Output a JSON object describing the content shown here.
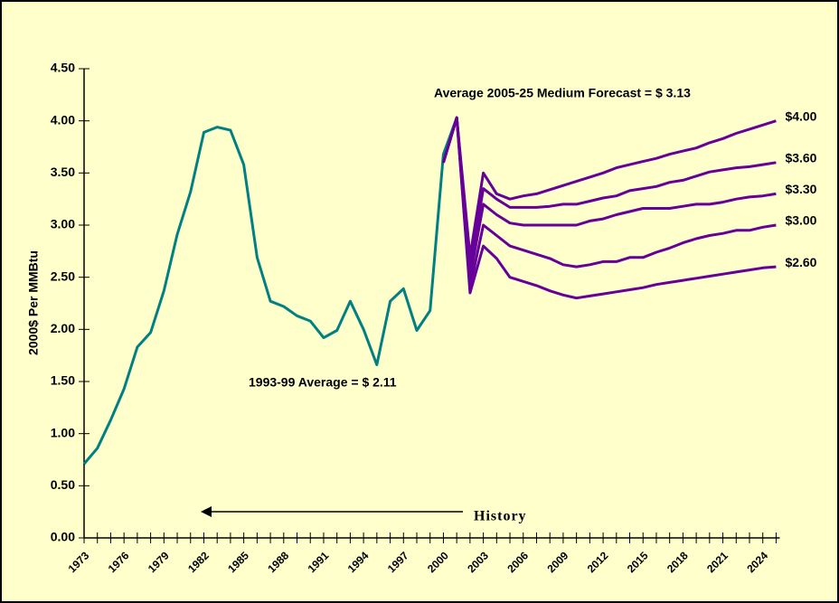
{
  "chart_data": {
    "type": "line",
    "y_label": "2000$ Per MMBtu",
    "annotations": [
      "Average 2005-25 Medium Forecast = $ 3.13",
      "1993-99 Average =  $ 2.11",
      "History"
    ],
    "categories": [
      "1973",
      null,
      null,
      "1976",
      null,
      null,
      "1979",
      null,
      null,
      "1982",
      null,
      null,
      "1985",
      null,
      null,
      "1988",
      null,
      null,
      "1991",
      null,
      null,
      "1994",
      null,
      null,
      "1997",
      null,
      null,
      "2000",
      null,
      null,
      "2003",
      null,
      null,
      "2006",
      null,
      null,
      "2009",
      null,
      null,
      "2012",
      null,
      null,
      "2015",
      null,
      null,
      "2018",
      null,
      null,
      "2021",
      null,
      null,
      "2024",
      null
    ],
    "ylim": [
      0,
      4.5
    ],
    "yticks": [
      {
        "value": 0,
        "label": "0.00"
      },
      {
        "value": 0.5,
        "label": "0.50"
      },
      {
        "value": 1,
        "label": "1.00"
      },
      {
        "value": 1.5,
        "label": "1.50"
      },
      {
        "value": 2,
        "label": "2.00"
      },
      {
        "value": 2.5,
        "label": "2.50"
      },
      {
        "value": 3,
        "label": "3.00"
      },
      {
        "value": 3.5,
        "label": "3.50"
      },
      {
        "value": 4,
        "label": "4.00"
      },
      {
        "value": 4.5,
        "label": "4.50"
      }
    ],
    "series": [
      {
        "color": "#008080",
        "values": [
          0.71,
          0.86,
          1.13,
          1.43,
          1.83,
          1.97,
          2.37,
          2.91,
          3.32,
          3.89,
          3.94,
          3.91,
          3.58,
          2.69,
          2.27,
          2.22,
          2.13,
          2.08,
          1.92,
          1.99,
          2.27,
          2.0,
          1.66,
          2.27,
          2.39,
          1.99,
          2.18,
          3.68,
          4.03,
          null,
          null,
          null,
          null,
          null,
          null,
          null,
          null,
          null,
          null,
          null,
          null,
          null,
          null,
          null,
          null,
          null,
          null,
          null,
          null,
          null,
          null,
          null,
          null
        ]
      },
      {
        "color": "#660099",
        "end_label": "$4.00",
        "values": [
          null,
          null,
          null,
          null,
          null,
          null,
          null,
          null,
          null,
          null,
          null,
          null,
          null,
          null,
          null,
          null,
          null,
          null,
          null,
          null,
          null,
          null,
          null,
          null,
          null,
          null,
          null,
          3.6,
          4.03,
          2.7,
          3.5,
          3.3,
          3.25,
          3.28,
          3.3,
          3.34,
          3.38,
          3.42,
          3.46,
          3.5,
          3.55,
          3.58,
          3.61,
          3.64,
          3.68,
          3.71,
          3.74,
          3.79,
          3.83,
          3.88,
          3.92,
          3.96,
          4.0
        ]
      },
      {
        "color": "#660099",
        "end_label": "$3.60",
        "values": [
          null,
          null,
          null,
          null,
          null,
          null,
          null,
          null,
          null,
          null,
          null,
          null,
          null,
          null,
          null,
          null,
          null,
          null,
          null,
          null,
          null,
          null,
          null,
          null,
          null,
          null,
          null,
          3.6,
          4.03,
          2.6,
          3.35,
          3.25,
          3.17,
          3.17,
          3.17,
          3.18,
          3.2,
          3.2,
          3.23,
          3.26,
          3.28,
          3.33,
          3.35,
          3.37,
          3.41,
          3.43,
          3.47,
          3.51,
          3.53,
          3.55,
          3.56,
          3.58,
          3.6
        ]
      },
      {
        "color": "#660099",
        "end_label": "$3.30",
        "values": [
          null,
          null,
          null,
          null,
          null,
          null,
          null,
          null,
          null,
          null,
          null,
          null,
          null,
          null,
          null,
          null,
          null,
          null,
          null,
          null,
          null,
          null,
          null,
          null,
          null,
          null,
          null,
          3.6,
          4.03,
          2.5,
          3.2,
          3.1,
          3.02,
          3.0,
          3.0,
          3.0,
          3.0,
          3.0,
          3.04,
          3.06,
          3.1,
          3.13,
          3.16,
          3.16,
          3.16,
          3.18,
          3.2,
          3.2,
          3.22,
          3.25,
          3.27,
          3.28,
          3.3
        ]
      },
      {
        "color": "#660099",
        "end_label": "$3.00",
        "values": [
          null,
          null,
          null,
          null,
          null,
          null,
          null,
          null,
          null,
          null,
          null,
          null,
          null,
          null,
          null,
          null,
          null,
          null,
          null,
          null,
          null,
          null,
          null,
          null,
          null,
          null,
          null,
          3.6,
          4.03,
          2.4,
          3.0,
          2.9,
          2.8,
          2.76,
          2.72,
          2.68,
          2.62,
          2.6,
          2.62,
          2.65,
          2.65,
          2.69,
          2.69,
          2.74,
          2.78,
          2.83,
          2.87,
          2.9,
          2.92,
          2.95,
          2.95,
          2.98,
          3.0
        ]
      },
      {
        "color": "#660099",
        "end_label": "$2.60",
        "values": [
          null,
          null,
          null,
          null,
          null,
          null,
          null,
          null,
          null,
          null,
          null,
          null,
          null,
          null,
          null,
          null,
          null,
          null,
          null,
          null,
          null,
          null,
          null,
          null,
          null,
          null,
          null,
          3.6,
          4.03,
          2.35,
          2.8,
          2.68,
          2.5,
          2.46,
          2.42,
          2.37,
          2.33,
          2.3,
          2.32,
          2.34,
          2.36,
          2.38,
          2.4,
          2.43,
          2.45,
          2.47,
          2.49,
          2.51,
          2.53,
          2.55,
          2.57,
          2.59,
          2.6
        ]
      }
    ]
  }
}
